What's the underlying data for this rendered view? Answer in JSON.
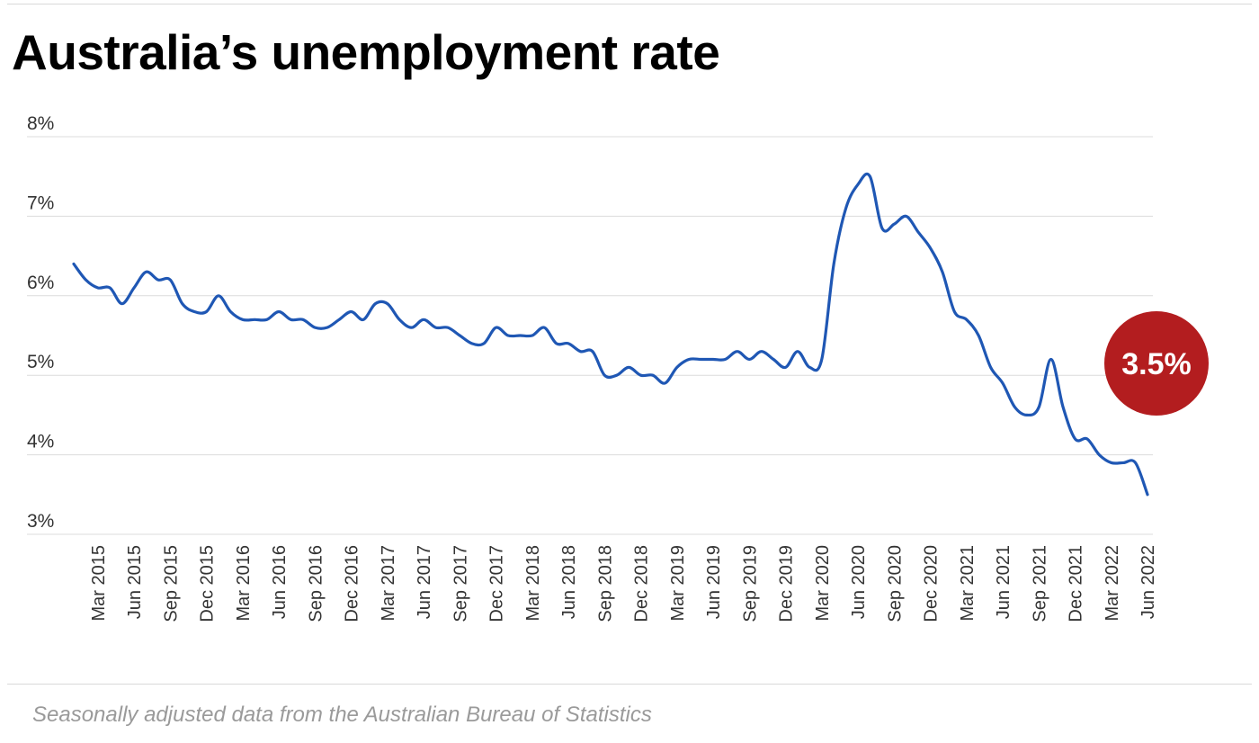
{
  "chart_data": {
    "type": "line",
    "title": "Australia’s unemployment rate",
    "subtitle": "",
    "xlabel": "",
    "ylabel": "",
    "y_ticks": [
      "3%",
      "4%",
      "5%",
      "6%",
      "7%",
      "8%"
    ],
    "ylim": [
      3,
      8
    ],
    "grid": true,
    "x_tick_labels": [
      "Mar 2015",
      "Jun 2015",
      "Sep 2015",
      "Dec 2015",
      "Mar 2016",
      "Jun 2016",
      "Sep 2016",
      "Dec 2016",
      "Mar 2017",
      "Jun 2017",
      "Sep 2017",
      "Dec 2017",
      "Mar 2018",
      "Jun 2018",
      "Sep 2018",
      "Dec 2018",
      "Mar 2019",
      "Jun 2019",
      "Sep 2019",
      "Dec 2019",
      "Mar 2020",
      "Jun 2020",
      "Sep 2020",
      "Dec 2020",
      "Mar 2021",
      "Jun 2021",
      "Sep 2021",
      "Dec 2021",
      "Mar 2022",
      "Jun 2022"
    ],
    "series": [
      {
        "name": "",
        "color": "#1f57b4",
        "x": [
          "Jan 2015",
          "Feb 2015",
          "Mar 2015",
          "Apr 2015",
          "May 2015",
          "Jun 2015",
          "Jul 2015",
          "Aug 2015",
          "Sep 2015",
          "Oct 2015",
          "Nov 2015",
          "Dec 2015",
          "Jan 2016",
          "Feb 2016",
          "Mar 2016",
          "Apr 2016",
          "May 2016",
          "Jun 2016",
          "Jul 2016",
          "Aug 2016",
          "Sep 2016",
          "Oct 2016",
          "Nov 2016",
          "Dec 2016",
          "Jan 2017",
          "Feb 2017",
          "Mar 2017",
          "Apr 2017",
          "May 2017",
          "Jun 2017",
          "Jul 2017",
          "Aug 2017",
          "Sep 2017",
          "Oct 2017",
          "Nov 2017",
          "Dec 2017",
          "Jan 2018",
          "Feb 2018",
          "Mar 2018",
          "Apr 2018",
          "May 2018",
          "Jun 2018",
          "Jul 2018",
          "Aug 2018",
          "Sep 2018",
          "Oct 2018",
          "Nov 2018",
          "Dec 2018",
          "Jan 2019",
          "Feb 2019",
          "Mar 2019",
          "Apr 2019",
          "May 2019",
          "Jun 2019",
          "Jul 2019",
          "Aug 2019",
          "Sep 2019",
          "Oct 2019",
          "Nov 2019",
          "Dec 2019",
          "Jan 2020",
          "Feb 2020",
          "Mar 2020",
          "Apr 2020",
          "May 2020",
          "Jun 2020",
          "Jul 2020",
          "Aug 2020",
          "Sep 2020",
          "Oct 2020",
          "Nov 2020",
          "Dec 2020",
          "Jan 2021",
          "Feb 2021",
          "Mar 2021",
          "Apr 2021",
          "May 2021",
          "Jun 2021",
          "Jul 2021",
          "Aug 2021",
          "Sep 2021",
          "Oct 2021",
          "Nov 2021",
          "Dec 2021",
          "Jan 2022",
          "Feb 2022",
          "Mar 2022",
          "Apr 2022",
          "May 2022",
          "Jun 2022"
        ],
        "values": [
          6.4,
          6.2,
          6.1,
          6.1,
          5.9,
          6.1,
          6.3,
          6.2,
          6.2,
          5.9,
          5.8,
          5.8,
          6.0,
          5.8,
          5.7,
          5.7,
          5.7,
          5.8,
          5.7,
          5.7,
          5.6,
          5.6,
          5.7,
          5.8,
          5.7,
          5.9,
          5.9,
          5.7,
          5.6,
          5.7,
          5.6,
          5.6,
          5.5,
          5.4,
          5.4,
          5.6,
          5.5,
          5.5,
          5.5,
          5.6,
          5.4,
          5.4,
          5.3,
          5.3,
          5.0,
          5.0,
          5.1,
          5.0,
          5.0,
          4.9,
          5.1,
          5.2,
          5.2,
          5.2,
          5.2,
          5.3,
          5.2,
          5.3,
          5.2,
          5.1,
          5.3,
          5.1,
          5.2,
          6.4,
          7.1,
          7.4,
          7.5,
          6.85,
          6.9,
          7.0,
          6.8,
          6.6,
          6.3,
          5.8,
          5.7,
          5.5,
          5.1,
          4.9,
          4.6,
          4.5,
          4.6,
          5.2,
          4.6,
          4.2,
          4.2,
          4.0,
          3.9,
          3.9,
          3.9,
          3.5
        ]
      }
    ],
    "annotation": {
      "label": "3.5%",
      "color": "#b31d1f"
    }
  },
  "source_note": "Seasonally adjusted data from the Australian Bureau of Statistics"
}
